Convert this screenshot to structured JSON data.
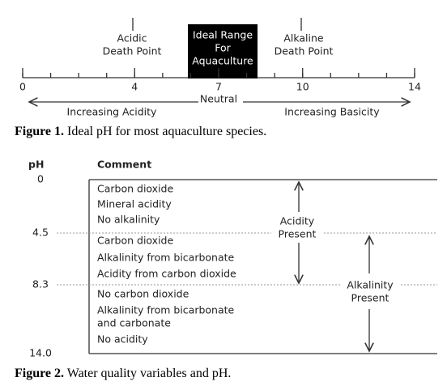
{
  "figure1": {
    "ticks": [
      0,
      4,
      7,
      10,
      14
    ],
    "acidic_label": [
      "Acidic",
      "Death Point"
    ],
    "ideal_range": [
      "Ideal Range",
      "For",
      "Aquaculture"
    ],
    "alkaline_label": [
      "Alkaline",
      "Death Point"
    ],
    "neutral": "Neutral",
    "increasing_acidity": "Increasing Acidity",
    "increasing_basicity": "Increasing Basicity",
    "caption": {
      "label": "Figure 1.",
      "text": "Ideal pH for most aquaculture species."
    }
  },
  "figure2": {
    "headers": [
      "pH",
      "Comment"
    ],
    "ph_values": [
      "0",
      "4.5",
      "8.3",
      "14.0"
    ],
    "groups": [
      [
        "Carbon dioxide",
        "Mineral acidity",
        "No alkalinity"
      ],
      [
        "Carbon dioxide",
        "Alkalinity from bicarbonate",
        "Acidity from carbon dioxide"
      ],
      [
        "No carbon dioxide",
        "Alkalinity from bicarbonate",
        "and carbonate",
        "No acidity"
      ]
    ],
    "acidity": [
      "Acidity",
      "Present"
    ],
    "alkalinity": [
      "Alkalinity",
      "Present"
    ],
    "caption": {
      "label": "Figure 2.",
      "text": "Water quality variables and pH."
    }
  }
}
